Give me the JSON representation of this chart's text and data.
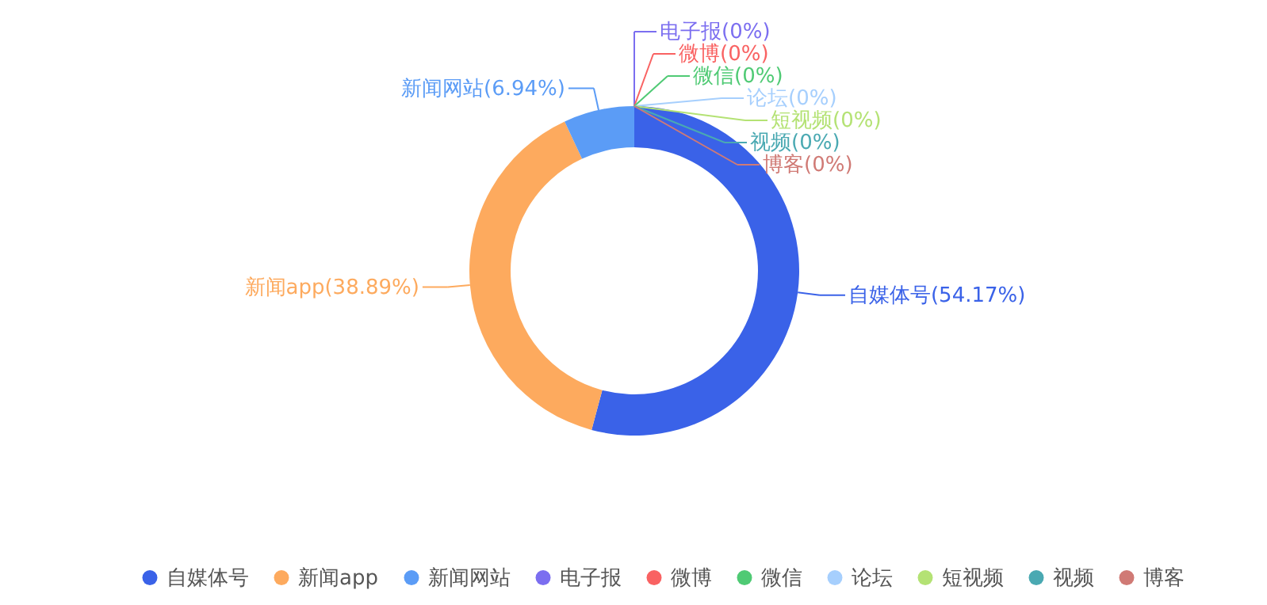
{
  "chart_data": {
    "type": "donut",
    "categories": [
      "自媒体号",
      "新闻app",
      "新闻网站",
      "电子报",
      "微博",
      "微信",
      "论坛",
      "短视频",
      "视频",
      "博客"
    ],
    "values": [
      54.17,
      38.89,
      6.94,
      0,
      0,
      0,
      0,
      0,
      0,
      0
    ],
    "value_labels": [
      "自媒体号(54.17%)",
      "新闻app(38.89%)",
      "新闻网站(6.94%)",
      "电子报(0%)",
      "微博(0%)",
      "微信(0%)",
      "论坛(0%)",
      "短视频(0%)",
      "视频(0%)",
      "博客(0%)"
    ],
    "colors": [
      "#3a62e8",
      "#fdaa5e",
      "#5b9cf6",
      "#7b6ef0",
      "#f96262",
      "#4fca74",
      "#a6cffd",
      "#b4e274",
      "#4aa9b2",
      "#d07a75"
    ],
    "legend": "bottom"
  }
}
